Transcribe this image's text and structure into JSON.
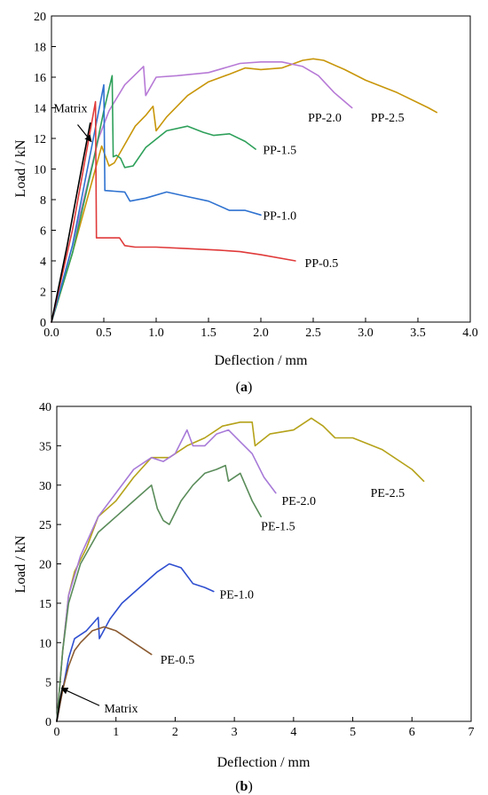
{
  "chart_data": [
    {
      "id": "a",
      "type": "line",
      "panel_label_open": "(",
      "panel_label_letter": "a",
      "panel_label_close": ")",
      "xlabel": "Deflection / mm",
      "ylabel": "Load / kN",
      "xlim": [
        0,
        4.0
      ],
      "ylim": [
        0,
        20
      ],
      "xticks": [
        "0.0",
        "0.5",
        "1.0",
        "1.5",
        "2.0",
        "2.5",
        "3.0",
        "3.5",
        "4.0"
      ],
      "yticks": [
        "0",
        "2",
        "4",
        "6",
        "8",
        "10",
        "12",
        "14",
        "16",
        "18",
        "20"
      ],
      "grid": false,
      "series": [
        {
          "name": "PP-2.5",
          "color": "#c8960a",
          "x": [
            0,
            0.2,
            0.4,
            0.48,
            0.55,
            0.6,
            0.7,
            0.8,
            0.9,
            0.97,
            1.0,
            1.1,
            1.3,
            1.5,
            1.7,
            1.85,
            2.0,
            2.2,
            2.4,
            2.5,
            2.6,
            2.8,
            3.0,
            3.3,
            3.6,
            3.68
          ],
          "y": [
            0,
            4.5,
            9.5,
            11.5,
            10.2,
            10.4,
            11.6,
            12.8,
            13.5,
            14.1,
            12.5,
            13.4,
            14.8,
            15.7,
            16.2,
            16.6,
            16.5,
            16.6,
            17.1,
            17.2,
            17.1,
            16.5,
            15.8,
            15.0,
            14.0,
            13.7
          ]
        },
        {
          "name": "PP-2.0",
          "color": "#b77ad6",
          "x": [
            0,
            0.2,
            0.45,
            0.55,
            0.7,
            0.88,
            0.9,
            1.0,
            1.2,
            1.5,
            1.8,
            2.0,
            2.2,
            2.4,
            2.55,
            2.7,
            2.87
          ],
          "y": [
            0,
            5.0,
            12.0,
            13.8,
            15.5,
            16.7,
            14.8,
            16.0,
            16.1,
            16.3,
            16.9,
            17.0,
            17.0,
            16.7,
            16.1,
            15.0,
            14.0
          ]
        },
        {
          "name": "PP-1.5",
          "color": "#2ea05a",
          "x": [
            0,
            0.2,
            0.4,
            0.5,
            0.58,
            0.59,
            0.62,
            0.66,
            0.7,
            0.78,
            0.9,
            1.1,
            1.3,
            1.45,
            1.55,
            1.7,
            1.85,
            1.95
          ],
          "y": [
            0,
            4.5,
            10.5,
            13.8,
            16.1,
            10.8,
            10.9,
            10.7,
            10.1,
            10.2,
            11.4,
            12.5,
            12.8,
            12.4,
            12.2,
            12.3,
            11.8,
            11.3
          ]
        },
        {
          "name": "PP-1.0",
          "color": "#2f72d0",
          "x": [
            0,
            0.2,
            0.4,
            0.5,
            0.51,
            0.7,
            0.75,
            0.9,
            1.1,
            1.3,
            1.5,
            1.7,
            1.85,
            2.0
          ],
          "y": [
            0,
            5.0,
            12.0,
            15.5,
            8.6,
            8.5,
            7.9,
            8.1,
            8.5,
            8.2,
            7.9,
            7.3,
            7.3,
            7.0
          ]
        },
        {
          "name": "PP-0.5",
          "color": "#e03a3a",
          "x": [
            0,
            0.2,
            0.42,
            0.43,
            0.65,
            0.7,
            0.8,
            1.0,
            1.3,
            1.6,
            1.8,
            2.0,
            2.33
          ],
          "y": [
            0,
            6.0,
            14.4,
            5.5,
            5.5,
            5.0,
            4.9,
            4.9,
            4.8,
            4.7,
            4.6,
            4.4,
            4.0
          ]
        },
        {
          "name": "Matrix",
          "color": "#000000",
          "x": [
            0,
            0.15,
            0.3,
            0.37
          ],
          "y": [
            0,
            5.0,
            10.5,
            13.0
          ]
        }
      ],
      "labels": [
        {
          "text": "PP-2.5",
          "x": 3.05,
          "y": 13.1
        },
        {
          "text": "PP-2.0",
          "x": 2.45,
          "y": 13.1
        },
        {
          "text": "PP-1.5",
          "x": 2.02,
          "y": 11.0
        },
        {
          "text": "PP-1.0",
          "x": 2.02,
          "y": 6.7
        },
        {
          "text": "PP-0.5",
          "x": 2.42,
          "y": 3.6
        },
        {
          "text": "Matrix",
          "x": 0.02,
          "y": 13.7
        }
      ],
      "arrow": {
        "from": [
          0.25,
          12.9
        ],
        "to": [
          0.38,
          11.8
        ]
      }
    },
    {
      "id": "b",
      "type": "line",
      "panel_label_open": "(",
      "panel_label_letter": "b",
      "panel_label_close": ")",
      "xlabel": "Deflection / mm",
      "ylabel": "Load / kN",
      "xlim": [
        0,
        7
      ],
      "ylim": [
        0,
        40
      ],
      "xticks": [
        "0",
        "1",
        "2",
        "3",
        "4",
        "5",
        "6",
        "7"
      ],
      "yticks": [
        "0",
        "5",
        "10",
        "15",
        "20",
        "25",
        "30",
        "35",
        "40"
      ],
      "grid": false,
      "series": [
        {
          "name": "PE-2.5",
          "color": "#b5a21a",
          "x": [
            0,
            0.1,
            0.2,
            0.3,
            0.5,
            0.7,
            1.0,
            1.3,
            1.6,
            1.9,
            2.2,
            2.5,
            2.8,
            3.1,
            3.3,
            3.35,
            3.6,
            4.0,
            4.3,
            4.5,
            4.7,
            5.0,
            5.5,
            6.0,
            6.2
          ],
          "y": [
            0,
            9,
            16,
            19,
            22,
            26,
            28,
            31,
            33.5,
            33.5,
            35,
            36,
            37.5,
            38,
            38,
            35,
            36.5,
            37,
            38.5,
            37.5,
            36,
            36,
            34.5,
            32,
            30.5
          ]
        },
        {
          "name": "PE-2.0",
          "color": "#a77ad8",
          "x": [
            0,
            0.1,
            0.2,
            0.4,
            0.7,
            1.0,
            1.3,
            1.6,
            1.8,
            2.0,
            2.2,
            2.3,
            2.5,
            2.7,
            2.9,
            3.1,
            3.3,
            3.5,
            3.7
          ],
          "y": [
            0,
            9,
            16,
            21,
            26,
            29,
            32,
            33.5,
            33,
            34,
            37,
            35,
            35,
            36.5,
            37,
            35.5,
            34,
            31,
            29
          ]
        },
        {
          "name": "PE-1.5",
          "color": "#5a8c5a",
          "x": [
            0,
            0.1,
            0.2,
            0.4,
            0.7,
            1.0,
            1.3,
            1.6,
            1.7,
            1.8,
            1.9,
            2.1,
            2.3,
            2.5,
            2.7,
            2.85,
            2.9,
            3.1,
            3.3,
            3.45
          ],
          "y": [
            0,
            9,
            15,
            20,
            24,
            26,
            28,
            30,
            27,
            25.5,
            25,
            28,
            30,
            31.5,
            32,
            32.5,
            30.5,
            31.5,
            28,
            26
          ]
        },
        {
          "name": "PE-1.0",
          "color": "#2f4fd0",
          "x": [
            0,
            0.1,
            0.2,
            0.3,
            0.5,
            0.7,
            0.72,
            0.9,
            1.1,
            1.4,
            1.7,
            1.9,
            2.1,
            2.3,
            2.5,
            2.65
          ],
          "y": [
            0,
            4,
            8,
            10.5,
            11.5,
            13.2,
            10.5,
            13,
            15,
            17,
            19,
            20,
            19.5,
            17.5,
            17,
            16.5
          ]
        },
        {
          "name": "PE-0.5",
          "color": "#8a5a30",
          "x": [
            0,
            0.1,
            0.2,
            0.3,
            0.4,
            0.6,
            0.8,
            1.0,
            1.2,
            1.4,
            1.6
          ],
          "y": [
            0,
            4,
            7,
            9,
            10,
            11.5,
            12,
            11.5,
            10.5,
            9.5,
            8.5
          ]
        },
        {
          "name": "Matrix",
          "color": "#000000",
          "x": [
            0,
            0.05,
            0.1
          ],
          "y": [
            0,
            2.5,
            4.5
          ]
        }
      ],
      "labels": [
        {
          "text": "PE-2.5",
          "x": 5.3,
          "y": 28.5
        },
        {
          "text": "PE-2.0",
          "x": 3.8,
          "y": 27.5
        },
        {
          "text": "PE-1.5",
          "x": 3.45,
          "y": 24.3
        },
        {
          "text": "PE-1.0",
          "x": 2.75,
          "y": 15.6
        },
        {
          "text": "PE-0.5",
          "x": 1.75,
          "y": 7.3
        },
        {
          "text": "Matrix",
          "x": 0.8,
          "y": 1.1
        }
      ],
      "arrow": {
        "from": [
          0.72,
          2.0
        ],
        "to": [
          0.08,
          4.2
        ]
      }
    }
  ]
}
